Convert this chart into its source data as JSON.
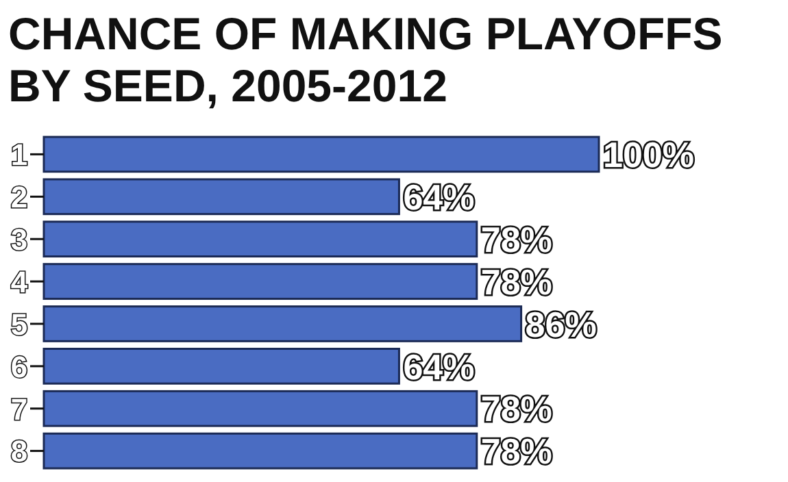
{
  "chart_data": {
    "type": "bar",
    "orientation": "horizontal",
    "title": "CHANCE OF MAKING PLAYOFFS BY SEED, 2005-2012",
    "categories": [
      "1",
      "2",
      "3",
      "4",
      "5",
      "6",
      "7",
      "8"
    ],
    "values": [
      100,
      64,
      78,
      78,
      86,
      64,
      78,
      78
    ],
    "value_labels": [
      "100%",
      "64%",
      "78%",
      "78%",
      "86%",
      "64%",
      "78%",
      "78%"
    ],
    "color": "#4a6cc2",
    "xlim": [
      0,
      100
    ]
  }
}
